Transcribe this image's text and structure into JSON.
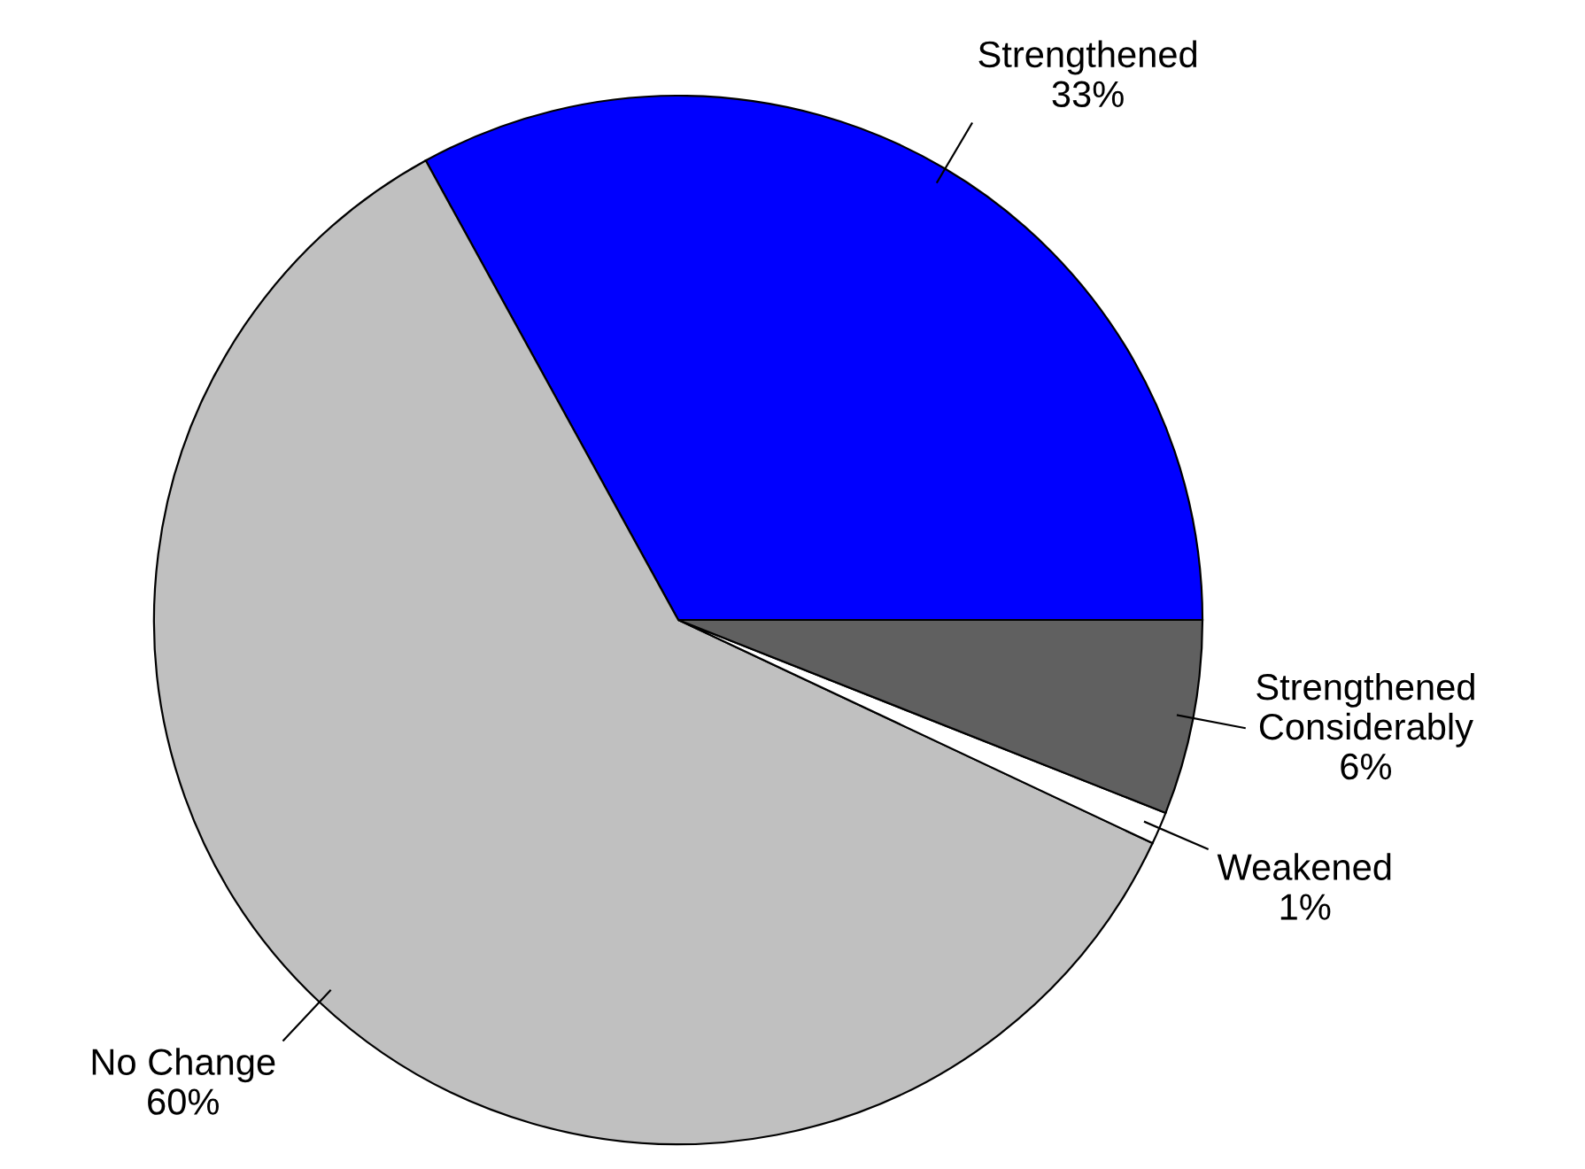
{
  "chart_data": {
    "type": "pie",
    "categories": [
      "Strengthened",
      "No Change",
      "Weakened",
      "Strengthened\nConsiderably"
    ],
    "values": [
      33,
      60,
      1,
      6
    ],
    "value_labels": [
      "33%",
      "60%",
      "1%",
      "6%"
    ],
    "colors": [
      "#0000ff",
      "#c0c0c0",
      "#ffffff",
      "#606060"
    ]
  }
}
